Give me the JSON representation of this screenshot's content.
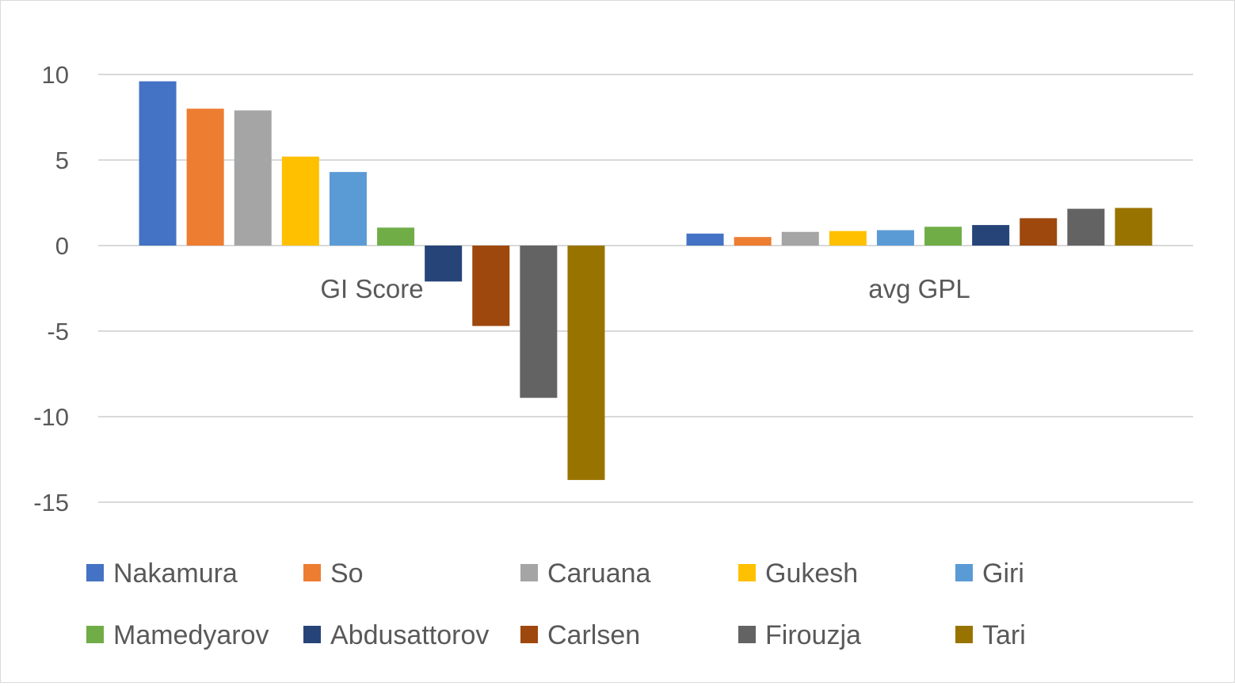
{
  "chart_data": {
    "type": "bar",
    "title": "",
    "xlabel": "",
    "ylabel": "",
    "categories": [
      "GI Score",
      "avg GPL"
    ],
    "ylim": [
      -15,
      10
    ],
    "yticks": [
      10,
      5,
      0,
      -5,
      -10,
      -15
    ],
    "grid": true,
    "legend_position": "bottom",
    "series": [
      {
        "name": "Nakamura",
        "color": "#4472C4",
        "values": [
          9.6,
          0.7
        ]
      },
      {
        "name": "So",
        "color": "#ED7D31",
        "values": [
          8.0,
          0.5
        ]
      },
      {
        "name": "Caruana",
        "color": "#A5A5A5",
        "values": [
          7.9,
          0.8
        ]
      },
      {
        "name": "Gukesh",
        "color": "#FFC000",
        "values": [
          5.2,
          0.85
        ]
      },
      {
        "name": "Giri",
        "color": "#5B9BD5",
        "values": [
          4.3,
          0.9
        ]
      },
      {
        "name": "Mamedyarov",
        "color": "#70AD47",
        "values": [
          1.05,
          1.1
        ]
      },
      {
        "name": "Abdusattorov",
        "color": "#264478",
        "values": [
          -2.1,
          1.2
        ]
      },
      {
        "name": "Carlsen",
        "color": "#9E480E",
        "values": [
          -4.7,
          1.6
        ]
      },
      {
        "name": "Firouzja",
        "color": "#636363",
        "values": [
          -8.9,
          2.15
        ]
      },
      {
        "name": "Tari",
        "color": "#997300",
        "values": [
          -13.7,
          2.2
        ]
      }
    ]
  }
}
